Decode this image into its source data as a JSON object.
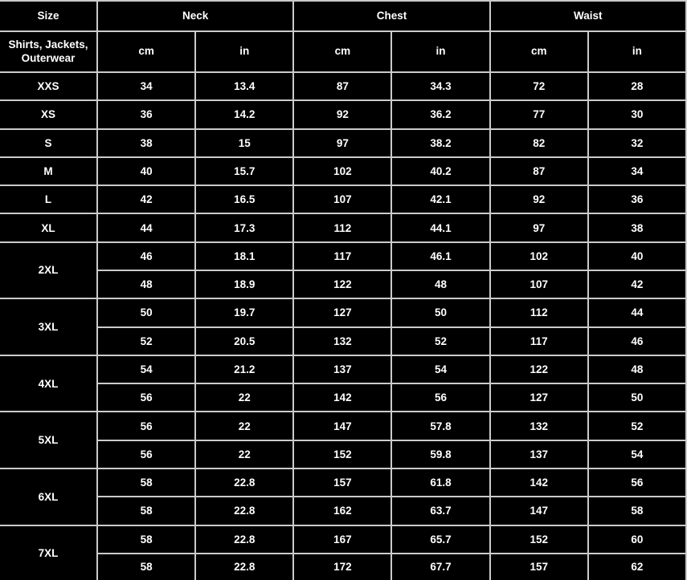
{
  "colors": {
    "background": "#000000",
    "grid_line": "#cbcbcb",
    "text": "#ffffff"
  },
  "chart_data": {
    "type": "table",
    "title": "",
    "header": {
      "size_label": "Size",
      "group_labels": [
        "Neck",
        "Chest",
        "Waist"
      ],
      "sub_label": "Shirts, Jackets, Outerwear",
      "units": [
        "cm",
        "in",
        "cm",
        "in",
        "cm",
        "in"
      ]
    },
    "columns": [
      "Size",
      "Neck cm",
      "Neck in",
      "Chest cm",
      "Chest in",
      "Waist cm",
      "Waist in"
    ],
    "row_groups": [
      {
        "size": "XXS",
        "values": [
          [
            "34",
            "13.4",
            "87",
            "34.3",
            "72",
            "28"
          ]
        ]
      },
      {
        "size": "XS",
        "values": [
          [
            "36",
            "14.2",
            "92",
            "36.2",
            "77",
            "30"
          ]
        ]
      },
      {
        "size": "S",
        "values": [
          [
            "38",
            "15",
            "97",
            "38.2",
            "82",
            "32"
          ]
        ]
      },
      {
        "size": "M",
        "values": [
          [
            "40",
            "15.7",
            "102",
            "40.2",
            "87",
            "34"
          ]
        ]
      },
      {
        "size": "L",
        "values": [
          [
            "42",
            "16.5",
            "107",
            "42.1",
            "92",
            "36"
          ]
        ]
      },
      {
        "size": "XL",
        "values": [
          [
            "44",
            "17.3",
            "112",
            "44.1",
            "97",
            "38"
          ]
        ]
      },
      {
        "size": "2XL",
        "values": [
          [
            "46",
            "18.1",
            "117",
            "46.1",
            "102",
            "40"
          ],
          [
            "48",
            "18.9",
            "122",
            "48",
            "107",
            "42"
          ]
        ]
      },
      {
        "size": "3XL",
        "values": [
          [
            "50",
            "19.7",
            "127",
            "50",
            "112",
            "44"
          ],
          [
            "52",
            "20.5",
            "132",
            "52",
            "117",
            "46"
          ]
        ]
      },
      {
        "size": "4XL",
        "values": [
          [
            "54",
            "21.2",
            "137",
            "54",
            "122",
            "48"
          ],
          [
            "56",
            "22",
            "142",
            "56",
            "127",
            "50"
          ]
        ]
      },
      {
        "size": "5XL",
        "values": [
          [
            "56",
            "22",
            "147",
            "57.8",
            "132",
            "52"
          ],
          [
            "56",
            "22",
            "152",
            "59.8",
            "137",
            "54"
          ]
        ]
      },
      {
        "size": "6XL",
        "values": [
          [
            "58",
            "22.8",
            "157",
            "61.8",
            "142",
            "56"
          ],
          [
            "58",
            "22.8",
            "162",
            "63.7",
            "147",
            "58"
          ]
        ]
      },
      {
        "size": "7XL",
        "values": [
          [
            "58",
            "22.8",
            "167",
            "65.7",
            "152",
            "60"
          ],
          [
            "58",
            "22.8",
            "172",
            "67.7",
            "157",
            "62"
          ]
        ]
      }
    ]
  }
}
